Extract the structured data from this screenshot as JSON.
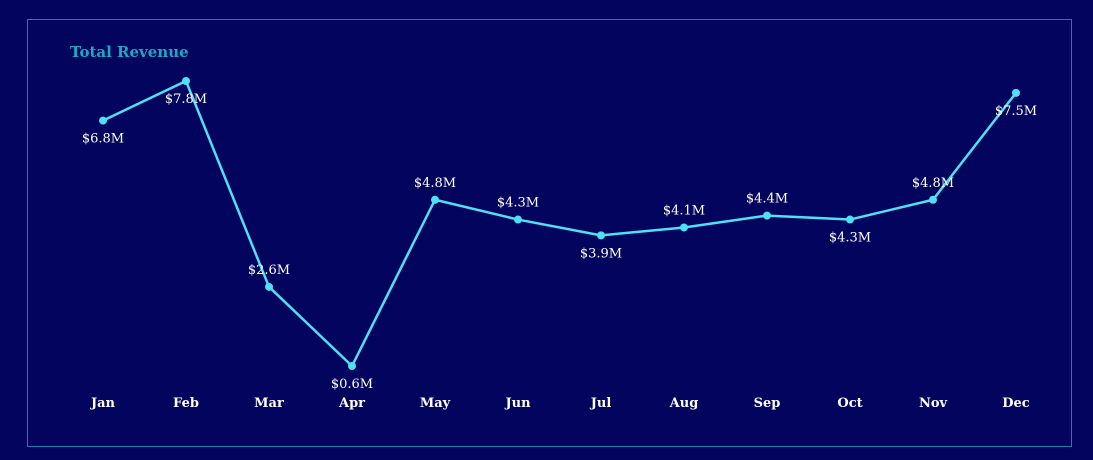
{
  "colors": {
    "background": "#03045e",
    "line": "#4fe0f5",
    "title": "#1aa8c4",
    "labels": "#ffffff",
    "border": "#1f7fa8"
  },
  "chart_data": {
    "type": "line",
    "title": "Total Revenue",
    "xlabel": "",
    "ylabel": "",
    "categories": [
      "Jan",
      "Feb",
      "Mar",
      "Apr",
      "May",
      "Jun",
      "Jul",
      "Aug",
      "Sep",
      "Oct",
      "Nov",
      "Dec"
    ],
    "series": [
      {
        "values": [
          6.8,
          7.8,
          2.6,
          0.6,
          4.8,
          4.3,
          3.9,
          4.1,
          4.4,
          4.3,
          4.8,
          7.5
        ],
        "labels": [
          "$6.8M",
          "$7.8M",
          "$2.6M",
          "$0.6M",
          "$4.8M",
          "$4.3M",
          "$3.9M",
          "$4.1M",
          "$4.4M",
          "$4.3M",
          "$4.8M",
          "$7.5M"
        ],
        "label_position": [
          "below",
          "below",
          "above",
          "below",
          "above",
          "above",
          "below",
          "above",
          "above",
          "below",
          "above",
          "below"
        ]
      }
    ],
    "ylim": [
      0.6,
      7.8
    ],
    "grid": false,
    "legend": "none"
  }
}
